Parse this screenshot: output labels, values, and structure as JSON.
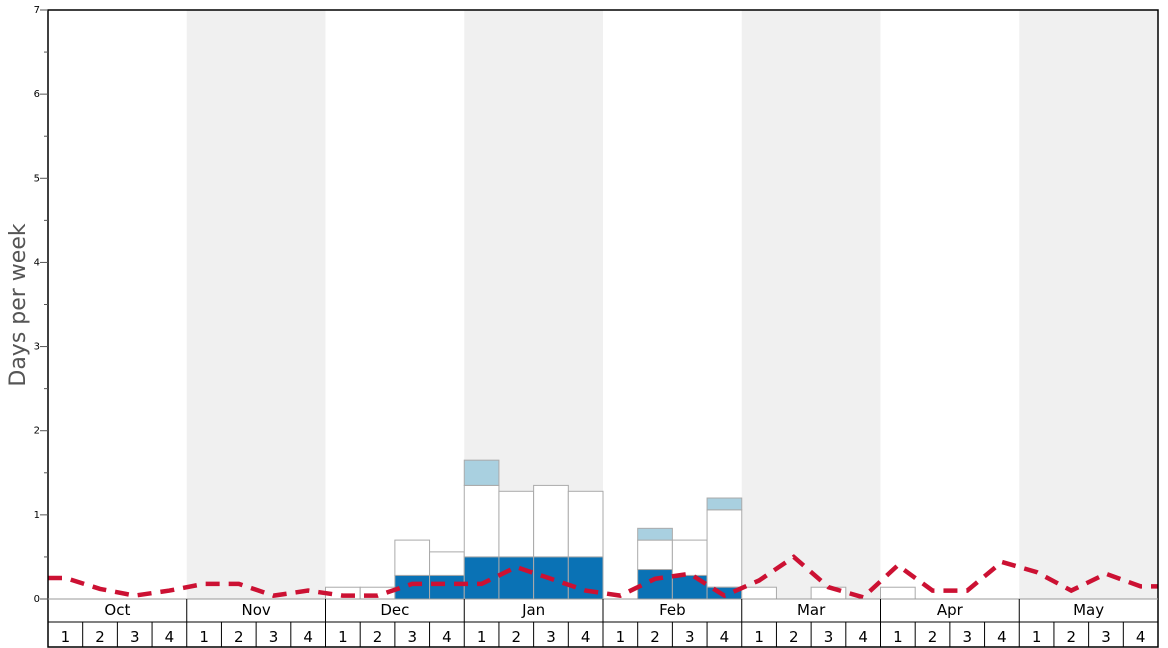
{
  "chart_data": {
    "type": "bar",
    "ylabel": "Days per week",
    "ylim": [
      0,
      7
    ],
    "y_ticks": [
      "0",
      "1",
      "2",
      "3",
      "4",
      "5",
      "6",
      "7"
    ],
    "months": [
      "Oct",
      "Nov",
      "Dec",
      "Jan",
      "Feb",
      "Mar",
      "Apr",
      "May"
    ],
    "weeks": [
      "1",
      "2",
      "3",
      "4"
    ],
    "colors": {
      "bar_dark": "#0a72b5",
      "bar_light": "#a9d0e0",
      "bar_empty": "#ffffff",
      "bar_border": "#aaaaaa",
      "line": "#cc1133",
      "band": "#f0f0f0"
    },
    "series": [
      {
        "values": [
          0,
          0,
          0,
          0,
          0,
          0,
          0,
          0,
          0,
          0,
          0.28,
          0.28,
          0.5,
          0.5,
          0.5,
          0.5,
          0,
          0.35,
          0.28,
          0.14,
          0,
          0,
          0,
          0,
          0,
          0,
          0,
          0,
          0,
          0,
          0,
          0
        ]
      },
      {
        "values": [
          0,
          0,
          0,
          0,
          0,
          0,
          0,
          0,
          0,
          0,
          0,
          0,
          0.3,
          0,
          0,
          0,
          0,
          0.14,
          0,
          0.14,
          0,
          0,
          0,
          0,
          0,
          0,
          0,
          0,
          0,
          0,
          0,
          0
        ]
      },
      {
        "values": [
          0,
          0,
          0,
          0,
          0,
          0,
          0,
          0,
          0.14,
          0.14,
          0.42,
          0.28,
          0.85,
          0.78,
          0.85,
          0.78,
          0,
          0.35,
          0.42,
          0.92,
          0.14,
          0,
          0.14,
          0,
          0.14,
          0,
          0,
          0,
          0,
          0,
          0,
          0
        ]
      },
      {
        "values": [
          0.25,
          0.12,
          0.04,
          0.1,
          0.18,
          0.18,
          0.04,
          0.1,
          0.04,
          0.04,
          0.18,
          0.18,
          0.18,
          0.38,
          0.24,
          0.1,
          0.04,
          0.24,
          0.3,
          0.04,
          0.22,
          0.5,
          0.14,
          0.02,
          0.4,
          0.1,
          0.1,
          0.44,
          0.32,
          0.1,
          0.3,
          0.15
        ]
      }
    ]
  }
}
